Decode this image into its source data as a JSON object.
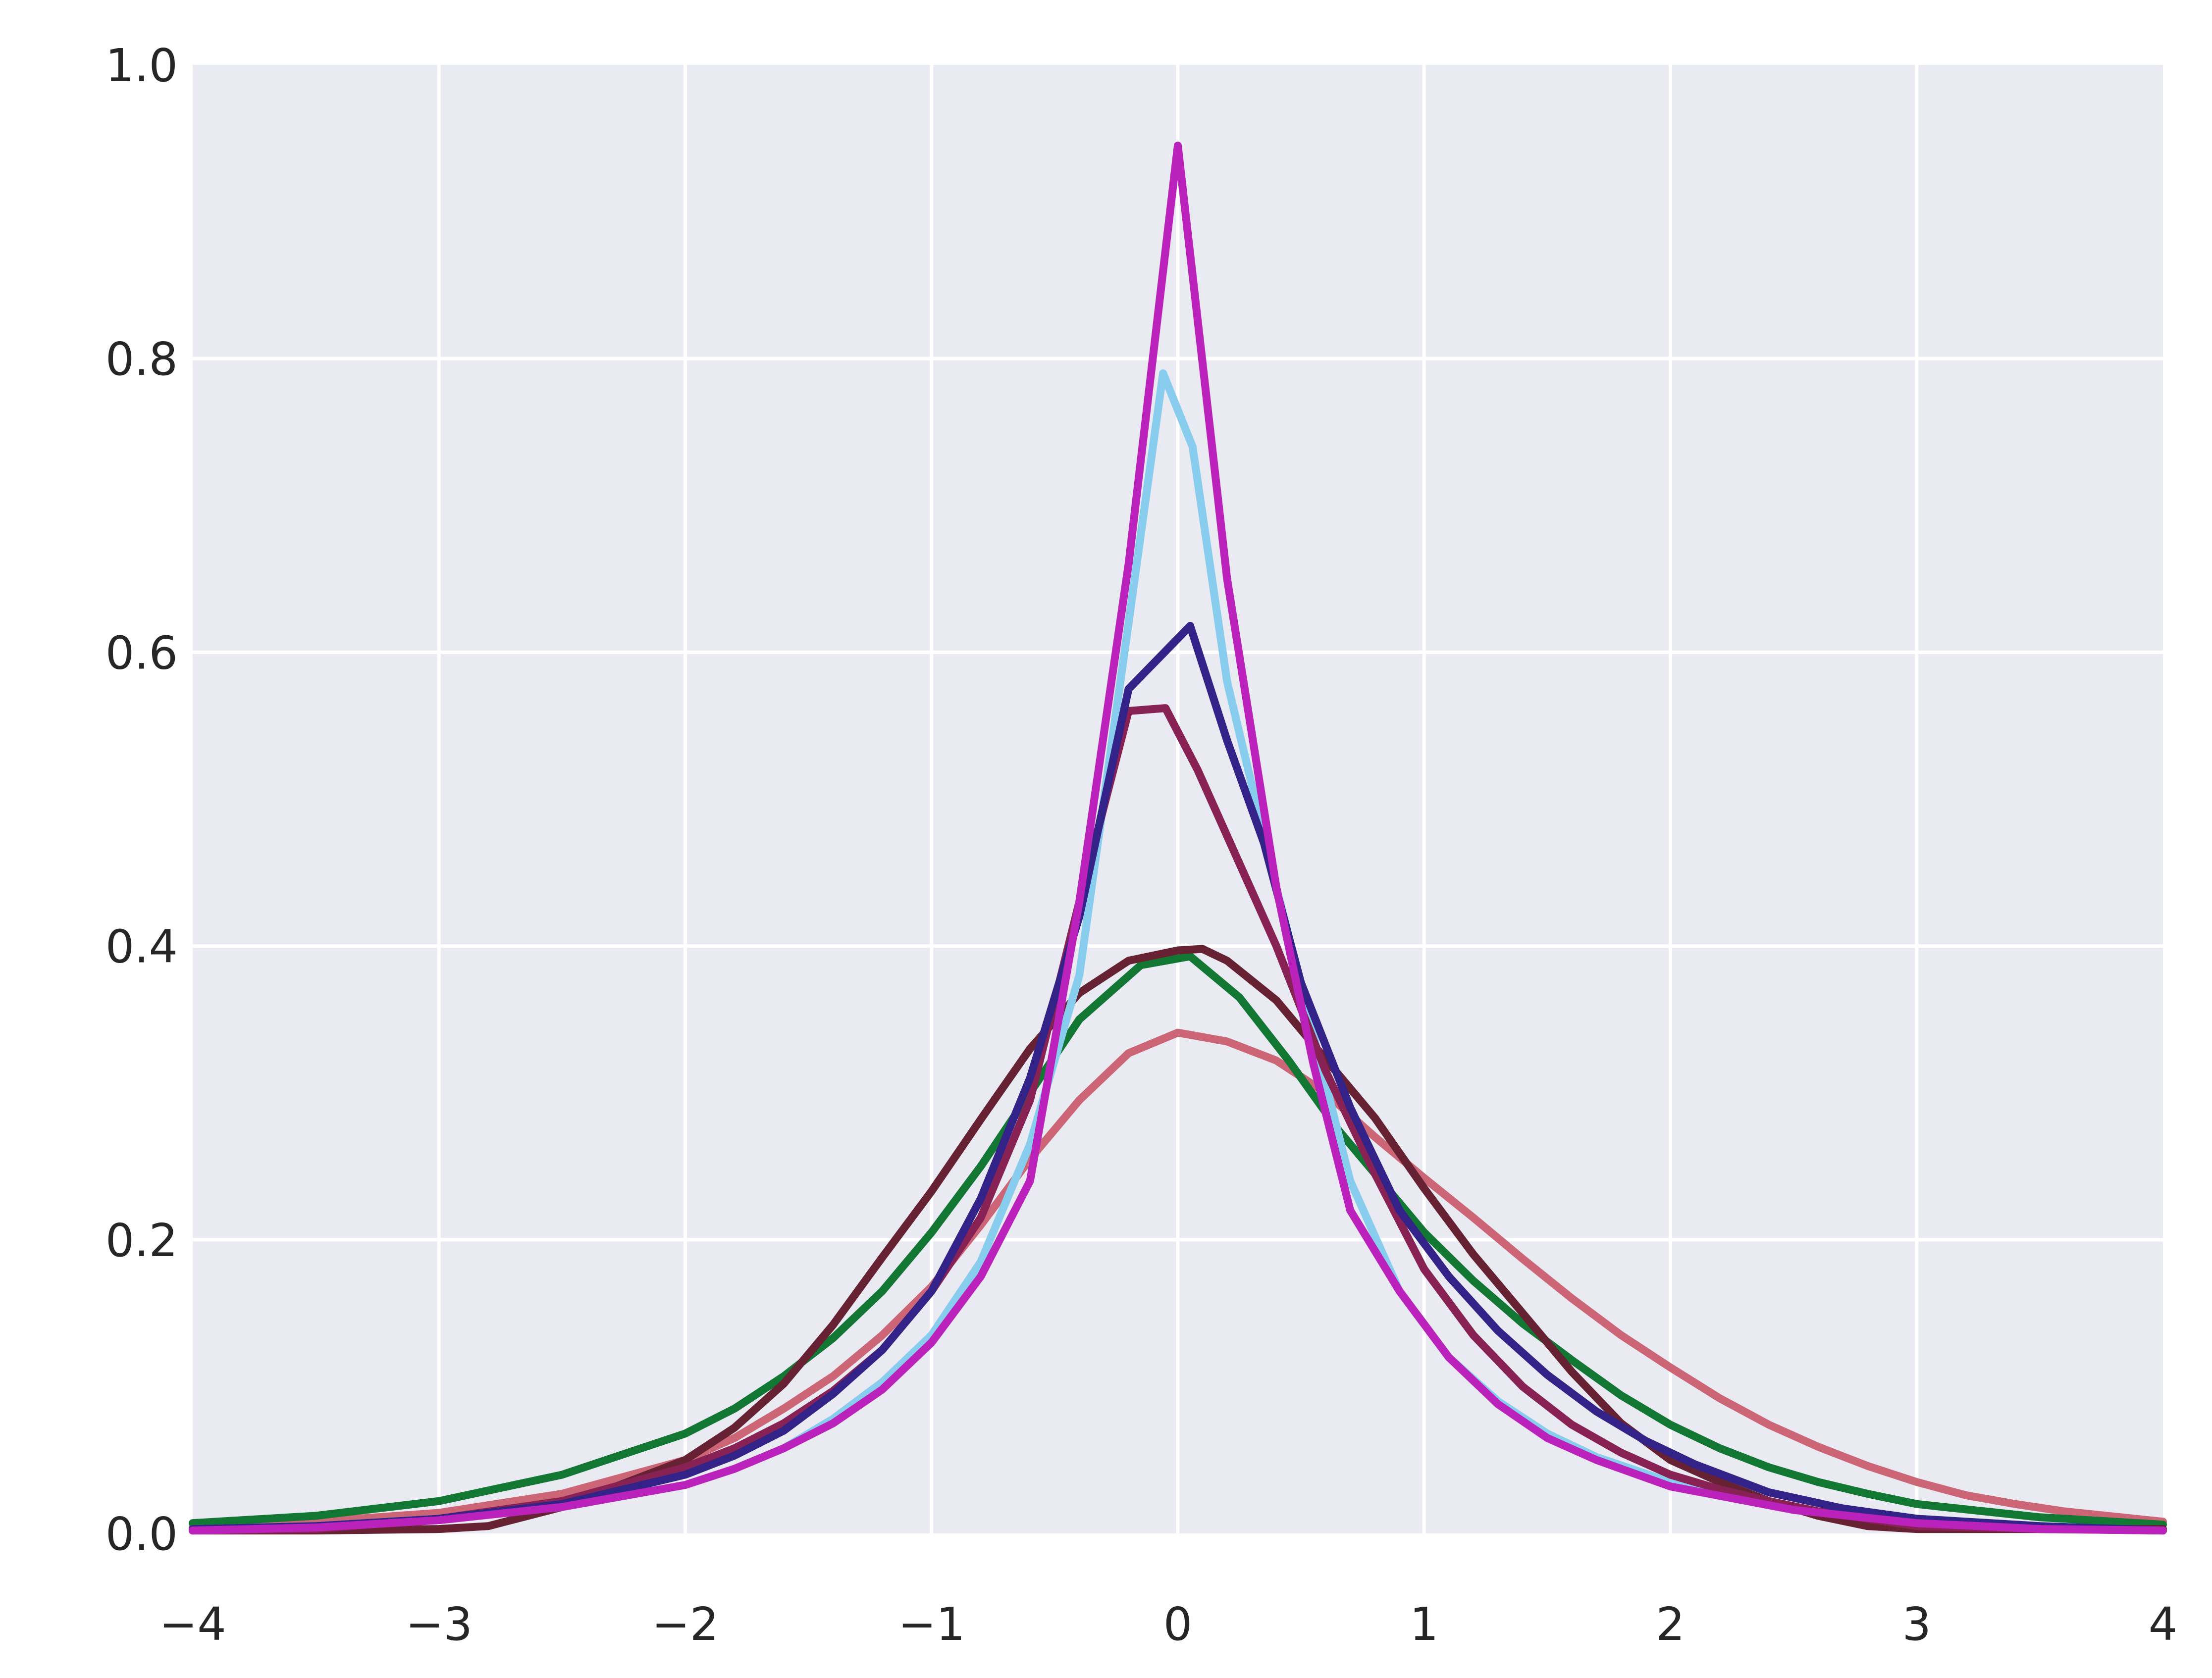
{
  "chart_data": {
    "type": "line",
    "title": "",
    "xlabel": "",
    "ylabel": "",
    "xlim": [
      -4,
      4
    ],
    "ylim": [
      0,
      1.0
    ],
    "grid": true,
    "background": "#eaeaf2",
    "grid_color": "#ffffff",
    "xticks": [
      -4,
      -3,
      -2,
      -1,
      0,
      1,
      2,
      3,
      4
    ],
    "xtick_labels": [
      "−4",
      "−3",
      "−2",
      "−1",
      "0",
      "1",
      "2",
      "3",
      "4"
    ],
    "yticks": [
      0.0,
      0.2,
      0.4,
      0.6,
      0.8,
      1.0
    ],
    "ytick_labels": [
      "0.0",
      "0.2",
      "0.4",
      "0.6",
      "0.8",
      "1.0"
    ],
    "series": [
      {
        "color": "#cc6677",
        "x": [
          -4,
          -3.5,
          -3,
          -2.5,
          -2,
          -1.8,
          -1.6,
          -1.4,
          -1.2,
          -1,
          -0.8,
          -0.6,
          -0.4,
          -0.2,
          0,
          0.2,
          0.4,
          0.6,
          0.8,
          1,
          1.2,
          1.4,
          1.6,
          1.8,
          2,
          2.2,
          2.4,
          2.6,
          2.8,
          3,
          3.2,
          3.4,
          3.6,
          4
        ],
        "y": [
          0.004,
          0.008,
          0.014,
          0.027,
          0.05,
          0.065,
          0.085,
          0.107,
          0.135,
          0.168,
          0.21,
          0.255,
          0.295,
          0.327,
          0.341,
          0.335,
          0.322,
          0.3,
          0.27,
          0.242,
          0.215,
          0.187,
          0.16,
          0.135,
          0.113,
          0.092,
          0.074,
          0.059,
          0.046,
          0.035,
          0.026,
          0.02,
          0.015,
          0.008
        ]
      },
      {
        "color": "#117733",
        "x": [
          -4,
          -3.5,
          -3,
          -2.5,
          -2,
          -1.8,
          -1.6,
          -1.4,
          -1.2,
          -1,
          -0.8,
          -0.6,
          -0.4,
          -0.15,
          0.05,
          0.25,
          0.45,
          0.65,
          0.85,
          1,
          1.2,
          1.4,
          1.6,
          1.8,
          2,
          2.2,
          2.4,
          2.6,
          2.8,
          3,
          3.5,
          4
        ],
        "y": [
          0.007,
          0.012,
          0.022,
          0.04,
          0.068,
          0.085,
          0.107,
          0.133,
          0.165,
          0.205,
          0.25,
          0.3,
          0.35,
          0.387,
          0.393,
          0.365,
          0.322,
          0.275,
          0.235,
          0.205,
          0.172,
          0.143,
          0.118,
          0.094,
          0.074,
          0.058,
          0.045,
          0.035,
          0.027,
          0.02,
          0.011,
          0.006
        ]
      },
      {
        "color": "#662233",
        "x": [
          -4,
          -3.5,
          -3,
          -2.8,
          -2.5,
          -2,
          -1.8,
          -1.6,
          -1.4,
          -1.2,
          -1,
          -0.8,
          -0.6,
          -0.4,
          -0.2,
          0,
          0.1,
          0.2,
          0.4,
          0.6,
          0.8,
          1,
          1.2,
          1.4,
          1.6,
          1.8,
          2,
          2.2,
          2.4,
          2.6,
          2.8,
          3,
          3.5,
          4
        ],
        "y": [
          0.002,
          0.002,
          0.003,
          0.005,
          0.018,
          0.05,
          0.072,
          0.102,
          0.142,
          0.188,
          0.233,
          0.282,
          0.33,
          0.368,
          0.39,
          0.397,
          0.398,
          0.39,
          0.363,
          0.323,
          0.283,
          0.235,
          0.19,
          0.15,
          0.11,
          0.075,
          0.05,
          0.035,
          0.022,
          0.012,
          0.005,
          0.003,
          0.003,
          0.003
        ]
      },
      {
        "color": "#88ccee",
        "x": [
          -4,
          -3.5,
          -3,
          -2.5,
          -2,
          -1.8,
          -1.6,
          -1.4,
          -1.2,
          -1,
          -0.8,
          -0.6,
          -0.4,
          -0.2,
          -0.06,
          0.06,
          0.2,
          0.4,
          0.55,
          0.7,
          0.9,
          1.1,
          1.3,
          1.5,
          1.7,
          2,
          2.5,
          3,
          3.5,
          4
        ],
        "y": [
          0.003,
          0.005,
          0.01,
          0.018,
          0.033,
          0.044,
          0.058,
          0.078,
          0.103,
          0.135,
          0.185,
          0.265,
          0.38,
          0.62,
          0.79,
          0.74,
          0.58,
          0.44,
          0.34,
          0.24,
          0.165,
          0.12,
          0.09,
          0.068,
          0.052,
          0.035,
          0.016,
          0.008,
          0.004,
          0.002
        ]
      },
      {
        "color": "#882255",
        "x": [
          -4,
          -3.5,
          -3,
          -2.5,
          -2,
          -1.8,
          -1.6,
          -1.4,
          -1.2,
          -1,
          -0.8,
          -0.6,
          -0.4,
          -0.2,
          -0.05,
          0.08,
          0.2,
          0.4,
          0.6,
          0.8,
          1,
          1.2,
          1.4,
          1.6,
          1.8,
          2,
          2.2,
          2.4,
          2.6,
          2.8,
          3,
          3.5,
          4
        ],
        "y": [
          0.002,
          0.003,
          0.01,
          0.022,
          0.045,
          0.058,
          0.075,
          0.097,
          0.125,
          0.165,
          0.215,
          0.295,
          0.43,
          0.56,
          0.562,
          0.52,
          0.475,
          0.4,
          0.315,
          0.245,
          0.18,
          0.135,
          0.1,
          0.074,
          0.055,
          0.04,
          0.03,
          0.022,
          0.015,
          0.01,
          0.005,
          0.003,
          0.002
        ]
      },
      {
        "color": "#332288",
        "x": [
          -4,
          -3.5,
          -3,
          -2.5,
          -2,
          -1.8,
          -1.6,
          -1.4,
          -1.2,
          -1,
          -0.8,
          -0.6,
          -0.4,
          -0.2,
          0.05,
          0.2,
          0.35,
          0.5,
          0.7,
          0.9,
          1.1,
          1.3,
          1.5,
          1.7,
          1.9,
          2.1,
          2.4,
          2.7,
          3,
          3.5,
          4
        ],
        "y": [
          0.003,
          0.005,
          0.01,
          0.02,
          0.04,
          0.053,
          0.07,
          0.095,
          0.125,
          0.165,
          0.228,
          0.31,
          0.42,
          0.575,
          0.618,
          0.54,
          0.47,
          0.375,
          0.29,
          0.22,
          0.175,
          0.138,
          0.108,
          0.083,
          0.063,
          0.047,
          0.028,
          0.017,
          0.01,
          0.005,
          0.002
        ]
      },
      {
        "color": "#bb22bb",
        "x": [
          -4,
          -3.5,
          -3,
          -2.5,
          -2,
          -1.8,
          -1.6,
          -1.4,
          -1.2,
          -1,
          -0.8,
          -0.6,
          -0.4,
          -0.2,
          0,
          0.2,
          0.4,
          0.55,
          0.7,
          0.9,
          1.1,
          1.3,
          1.5,
          1.7,
          2,
          2.5,
          3,
          3.5,
          4
        ],
        "y": [
          0.002,
          0.004,
          0.009,
          0.018,
          0.033,
          0.044,
          0.058,
          0.075,
          0.098,
          0.13,
          0.175,
          0.24,
          0.43,
          0.66,
          0.945,
          0.65,
          0.44,
          0.32,
          0.22,
          0.165,
          0.12,
          0.088,
          0.065,
          0.05,
          0.032,
          0.016,
          0.007,
          0.003,
          0.002
        ]
      }
    ]
  }
}
